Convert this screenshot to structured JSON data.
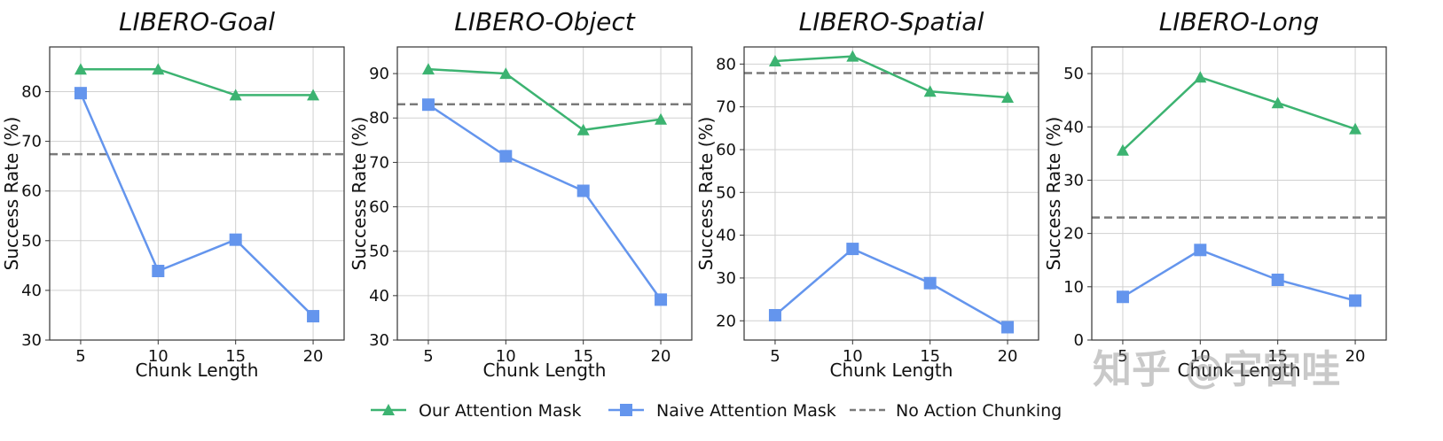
{
  "chart_data": [
    {
      "type": "line",
      "title": "LIBERO-Goal",
      "xlabel": "Chunk Length",
      "ylabel": "Success Rate (%)",
      "x": [
        5,
        10,
        15,
        20
      ],
      "xticks": [
        "5",
        "10",
        "15",
        "20"
      ],
      "ylim": [
        30,
        89
      ],
      "yticks": [
        30,
        40,
        50,
        60,
        70,
        80
      ],
      "grid": true,
      "series": [
        {
          "name": "Our Attention Mask",
          "values": [
            84.5,
            84.5,
            79.3,
            79.3
          ]
        },
        {
          "name": "Naive Attention Mask",
          "values": [
            79.7,
            43.9,
            50.2,
            34.8
          ]
        }
      ],
      "baseline": {
        "name": "No Action Chunking",
        "value": 67.4
      }
    },
    {
      "type": "line",
      "title": "LIBERO-Object",
      "xlabel": "Chunk Length",
      "ylabel": "Success Rate (%)",
      "x": [
        5,
        10,
        15,
        20
      ],
      "xticks": [
        "5",
        "10",
        "15",
        "20"
      ],
      "ylim": [
        30,
        96
      ],
      "yticks": [
        30,
        40,
        50,
        60,
        70,
        80,
        90
      ],
      "grid": true,
      "series": [
        {
          "name": "Our Attention Mask",
          "values": [
            91.0,
            90.0,
            77.3,
            79.7
          ]
        },
        {
          "name": "Naive Attention Mask",
          "values": [
            83.0,
            71.4,
            63.6,
            39.1
          ]
        }
      ],
      "baseline": {
        "name": "No Action Chunking",
        "value": 83.1
      }
    },
    {
      "type": "line",
      "title": "LIBERO-Spatial",
      "xlabel": "Chunk Length",
      "ylabel": "Success Rate (%)",
      "x": [
        5,
        10,
        15,
        20
      ],
      "xticks": [
        "5",
        "10",
        "15",
        "20"
      ],
      "ylim": [
        15.5,
        84
      ],
      "yticks": [
        20,
        30,
        40,
        50,
        60,
        70,
        80
      ],
      "grid": true,
      "series": [
        {
          "name": "Our Attention Mask",
          "values": [
            80.7,
            81.8,
            73.6,
            72.2
          ]
        },
        {
          "name": "Naive Attention Mask",
          "values": [
            21.3,
            36.8,
            28.8,
            18.5
          ]
        }
      ],
      "baseline": {
        "name": "No Action Chunking",
        "value": 77.9
      }
    },
    {
      "type": "line",
      "title": "LIBERO-Long",
      "xlabel": "Chunk Length",
      "ylabel": "Success Rate (%)",
      "x": [
        5,
        10,
        15,
        20
      ],
      "xticks": [
        "5",
        "10",
        "15",
        "20"
      ],
      "ylim": [
        0,
        55
      ],
      "yticks": [
        0,
        10,
        20,
        30,
        40,
        50
      ],
      "grid": true,
      "series": [
        {
          "name": "Our Attention Mask",
          "values": [
            35.6,
            49.3,
            44.5,
            39.6
          ]
        },
        {
          "name": "Naive Attention Mask",
          "values": [
            8.1,
            16.9,
            11.3,
            7.4
          ]
        }
      ],
      "baseline": {
        "name": "No Action Chunking",
        "value": 23.0
      }
    }
  ],
  "legend": {
    "placement": "bottom-center",
    "items": [
      {
        "label": "Our Attention Mask",
        "marker": "triangle",
        "color": "#3cb371",
        "style": "solid"
      },
      {
        "label": "Naive Attention Mask",
        "marker": "square",
        "color": "#6495ed",
        "style": "solid"
      },
      {
        "label": "No Action Chunking",
        "marker": "none",
        "color": "#7a7a7a",
        "style": "dashed"
      }
    ]
  },
  "colors": {
    "ours": "#3cb371",
    "naive": "#6495ed",
    "baseline": "#7a7a7a",
    "grid": "#d0d0d0"
  },
  "watermark": "知乎 @宇宙哇"
}
